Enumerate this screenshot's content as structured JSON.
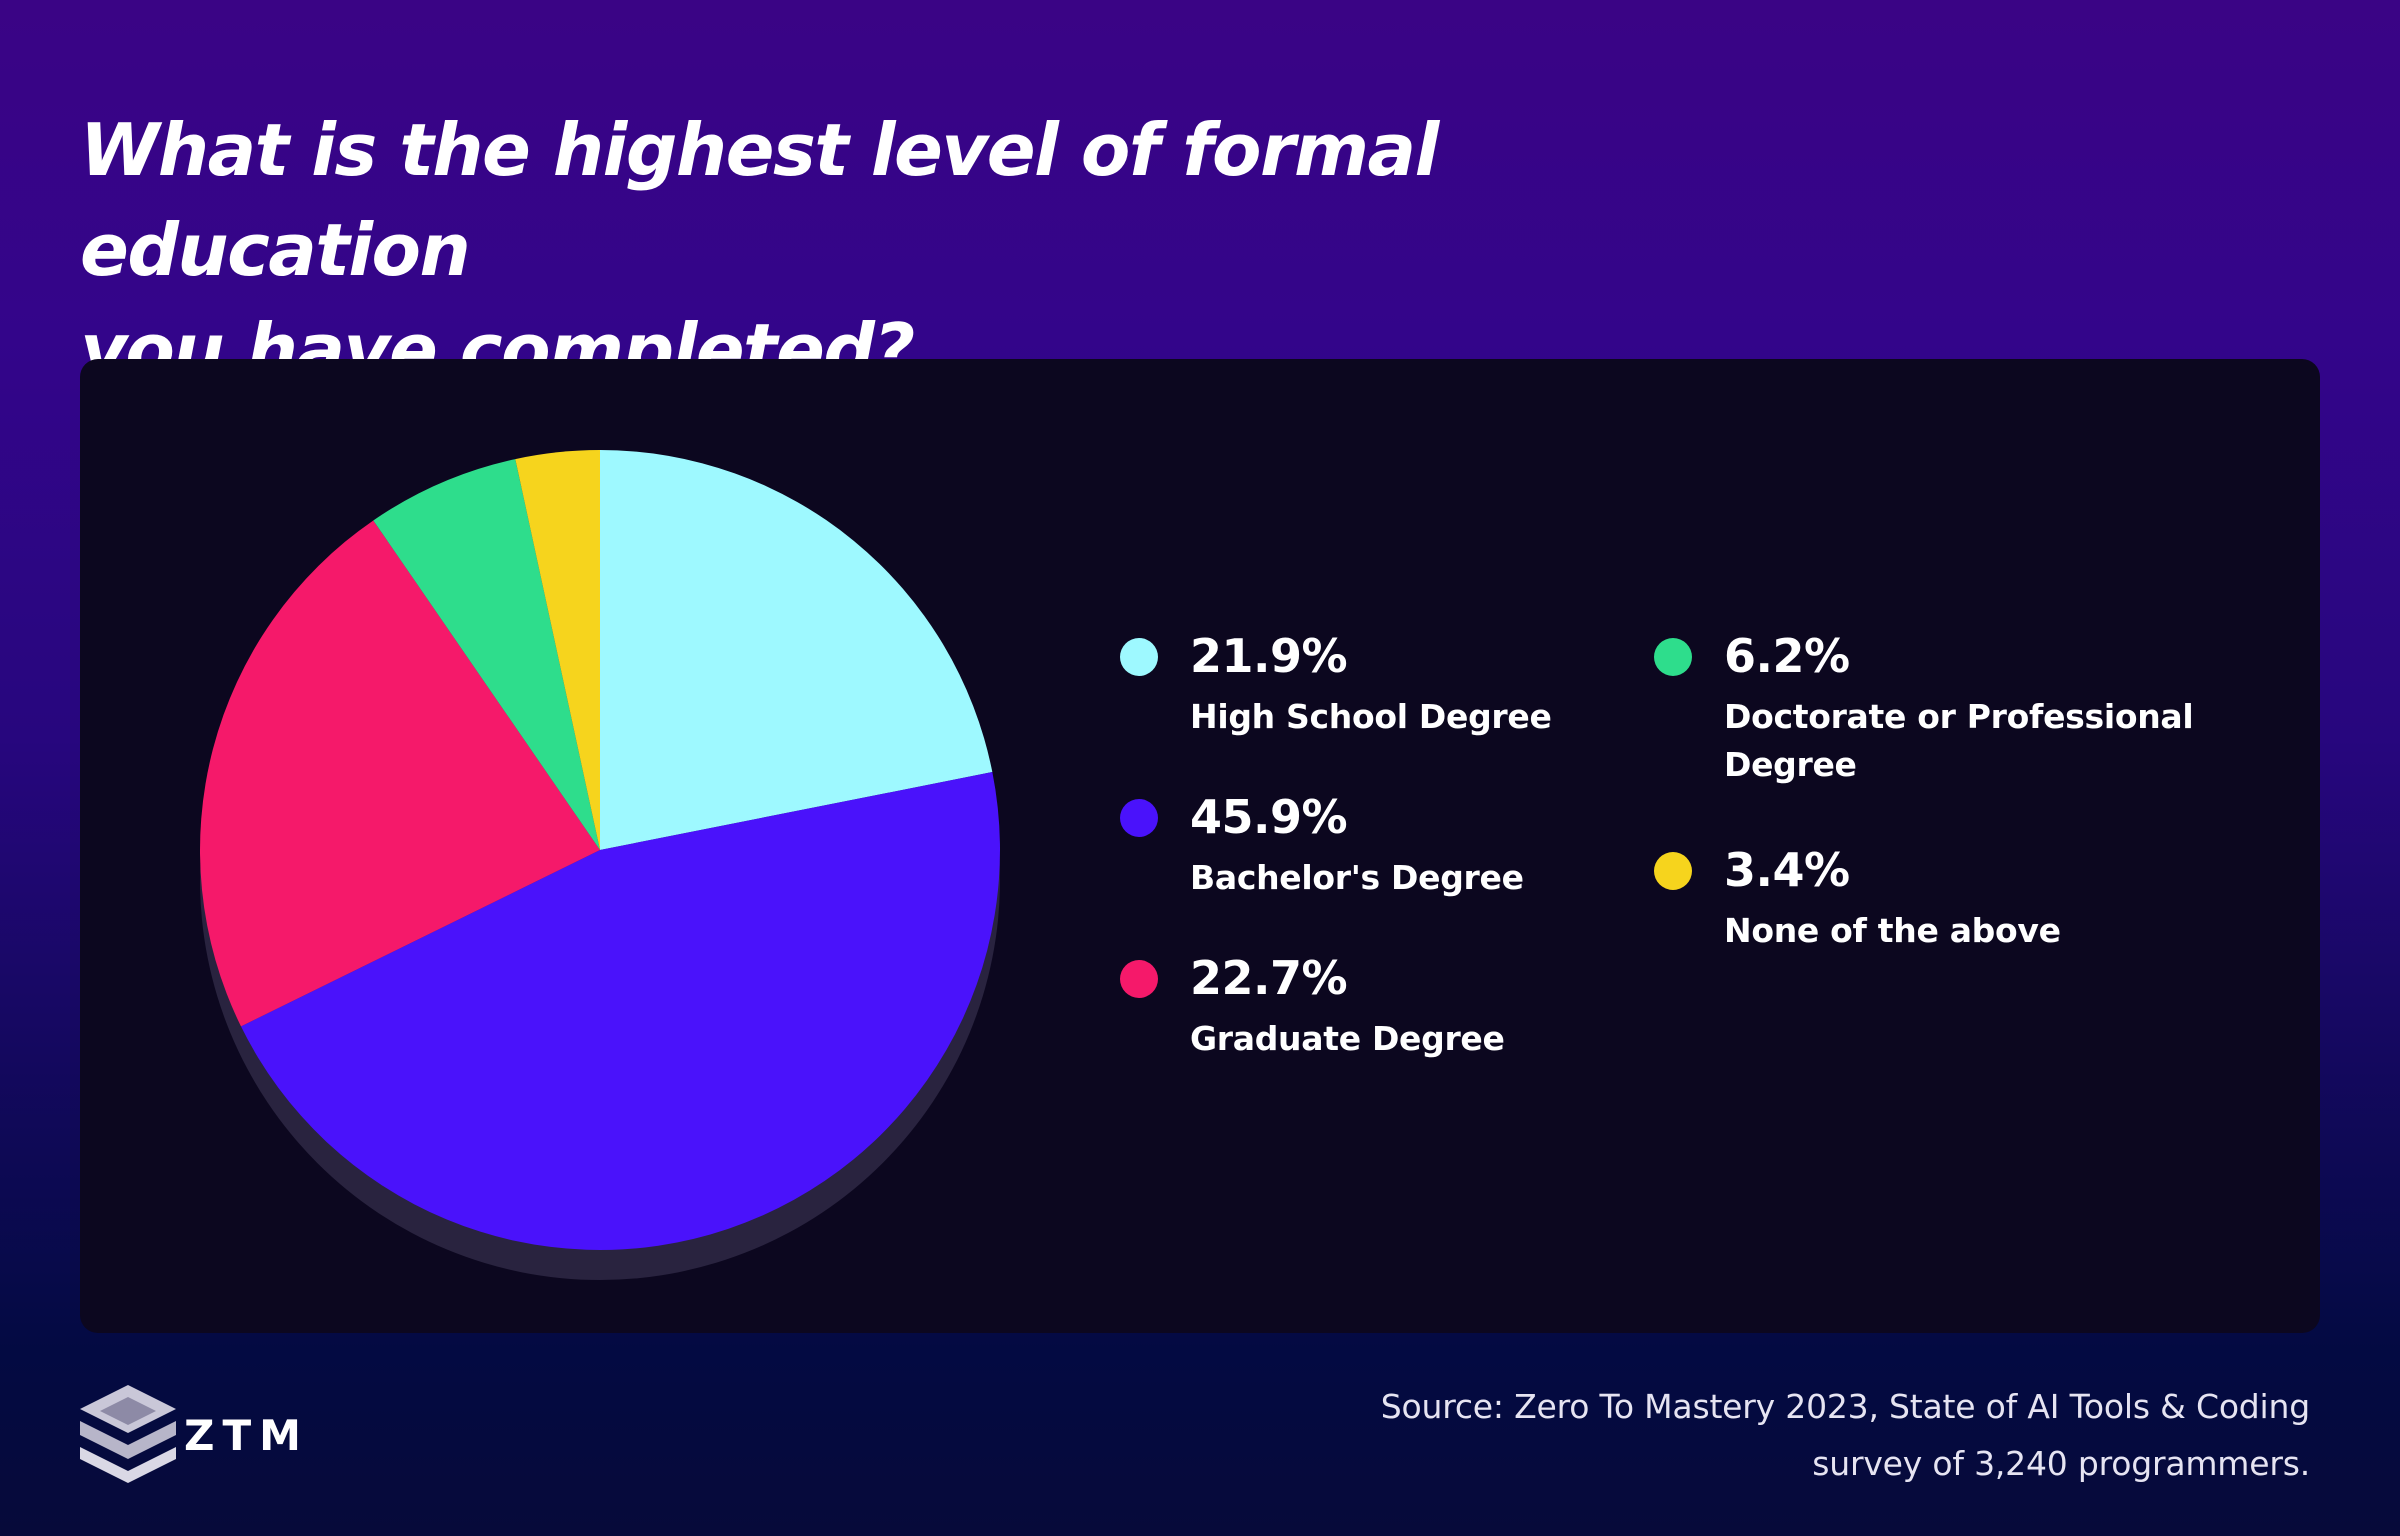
{
  "title_line1": "What is the highest level of formal education",
  "title_line2": "you have completed?",
  "chart_data": {
    "type": "pie",
    "slices": [
      {
        "label": "High School Degree",
        "value": 21.9,
        "display": "21.9%",
        "color": "#9ef9ff"
      },
      {
        "label": "Bachelor's Degree",
        "value": 45.9,
        "display": "45.9%",
        "color": "#4a12fb"
      },
      {
        "label": "Graduate Degree",
        "value": 22.7,
        "display": "22.7%",
        "color": "#f5196a"
      },
      {
        "label": "Doctorate or Professional Degree",
        "value": 6.2,
        "display": "6.2%",
        "color": "#2edd8c"
      },
      {
        "label": "None of the above",
        "value": 3.4,
        "display": "3.4%",
        "color": "#f6d41d"
      }
    ],
    "start_angle": "12 o'clock",
    "direction": "clockwise",
    "legend_placement": "right"
  },
  "source_line1": "Source: Zero To Mastery 2023, State of AI Tools & Coding",
  "source_line2": "survey of 3,240 programmers.",
  "logo_text": "ZTM",
  "colors": {
    "panel_background": "#0c071f",
    "pie_shadow": "#29233f"
  }
}
